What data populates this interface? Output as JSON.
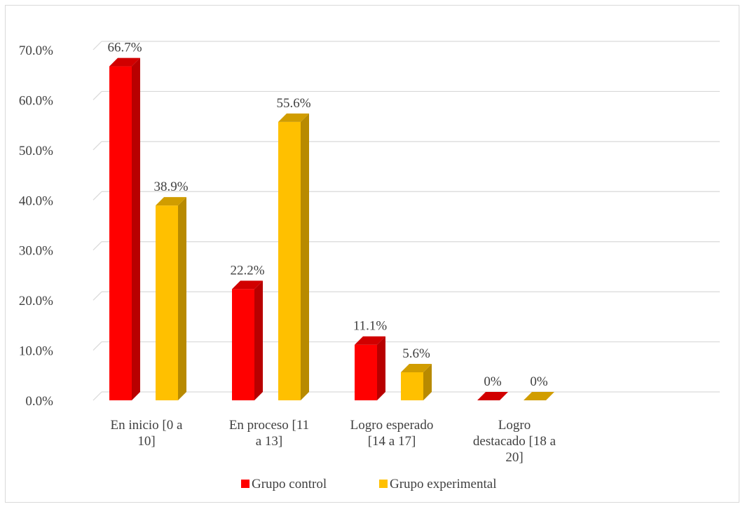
{
  "chart_data": {
    "type": "bar",
    "title": "",
    "xlabel": "",
    "ylabel": "",
    "ylim": [
      0,
      70
    ],
    "yticks": [
      "0.0%",
      "10.0%",
      "20.0%",
      "30.0%",
      "40.0%",
      "50.0%",
      "60.0%",
      "70.0%"
    ],
    "categories": [
      [
        "En inicio [0 a",
        "10]"
      ],
      [
        "En proceso [11",
        "a 13]"
      ],
      [
        "Logro esperado",
        "[14 a 17]"
      ],
      [
        "Logro",
        "destacado [18 a",
        "20]"
      ]
    ],
    "series": [
      {
        "name": "Grupo control",
        "color": "#ff0000",
        "values": [
          66.7,
          22.2,
          11.1,
          0
        ],
        "labels": [
          "66.7%",
          "22.2%",
          "11.1%",
          "0%"
        ]
      },
      {
        "name": "Grupo experimental",
        "color": "#ffc000",
        "values": [
          38.9,
          55.6,
          5.6,
          0
        ],
        "labels": [
          "38.9%",
          "55.6%",
          "5.6%",
          "0%"
        ]
      }
    ],
    "grid": true,
    "legend_position": "bottom",
    "style": "3d-column"
  }
}
